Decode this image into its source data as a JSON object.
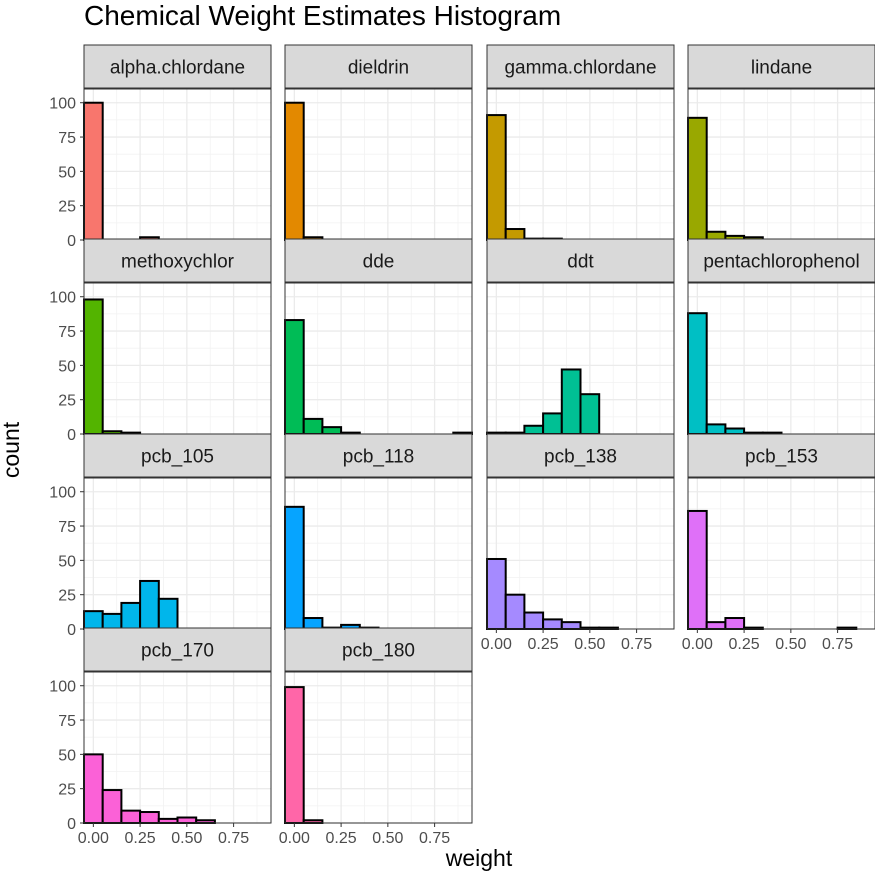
{
  "chart_data": {
    "type": "bar",
    "title": "Chemical Weight Estimates Histogram",
    "xlabel": "weight",
    "ylabel": "count",
    "xlim": [
      -0.05,
      0.95
    ],
    "ylim": [
      0,
      110
    ],
    "bin_width": 0.1,
    "bin_starts": [
      -0.05,
      0.05,
      0.15,
      0.25,
      0.35,
      0.45,
      0.55,
      0.65,
      0.75,
      0.85
    ],
    "x_ticks": [
      "0.00",
      "0.25",
      "0.50",
      "0.75"
    ],
    "x_tick_values": [
      0,
      0.25,
      0.5,
      0.75
    ],
    "y_ticks": [
      "0",
      "25",
      "50",
      "75",
      "100"
    ],
    "y_tick_values": [
      0,
      25,
      50,
      75,
      100
    ],
    "grid": true,
    "layout": "facet grid, 4 columns",
    "series": [
      {
        "name": "alpha.chlordane",
        "color": "#F8766D",
        "values": [
          100,
          0,
          0,
          2,
          0,
          0,
          0,
          0,
          0,
          0
        ]
      },
      {
        "name": "dieldrin",
        "color": "#E38900",
        "values": [
          100,
          2,
          0,
          0,
          0,
          0,
          0,
          0,
          0,
          0
        ]
      },
      {
        "name": "gamma.chlordane",
        "color": "#C49A00",
        "values": [
          91,
          8,
          1,
          1,
          0,
          0,
          0,
          0,
          0,
          0
        ]
      },
      {
        "name": "lindane",
        "color": "#99A800",
        "values": [
          89,
          6,
          3,
          2,
          0,
          0,
          0,
          0,
          0,
          0
        ]
      },
      {
        "name": "methoxychlor",
        "color": "#53B400",
        "values": [
          98,
          2,
          1,
          0,
          0,
          0,
          0,
          0,
          0,
          0
        ]
      },
      {
        "name": "dde",
        "color": "#00BC56",
        "values": [
          83,
          11,
          5,
          1,
          0,
          0,
          0,
          0,
          0,
          1
        ]
      },
      {
        "name": "ddt",
        "color": "#00C094",
        "values": [
          1,
          1,
          6,
          15,
          47,
          29,
          0,
          0,
          0,
          0
        ]
      },
      {
        "name": "pentachlorophenol",
        "color": "#00BFC4",
        "values": [
          88,
          7,
          4,
          1,
          1,
          0,
          0,
          0,
          0,
          0
        ]
      },
      {
        "name": "pcb_105",
        "color": "#00B6EB",
        "values": [
          13,
          11,
          19,
          35,
          22,
          0,
          0,
          0,
          0,
          0
        ]
      },
      {
        "name": "pcb_118",
        "color": "#06A4FF",
        "values": [
          89,
          8,
          1,
          3,
          1,
          0,
          0,
          0,
          0,
          0
        ]
      },
      {
        "name": "pcb_138",
        "color": "#A58AFF",
        "values": [
          51,
          25,
          12,
          7,
          5,
          1,
          1,
          0,
          0,
          0
        ]
      },
      {
        "name": "pcb_153",
        "color": "#DF70F8",
        "values": [
          86,
          5,
          8,
          1,
          0,
          0,
          0,
          0,
          1,
          0
        ]
      },
      {
        "name": "pcb_170",
        "color": "#FB61D7",
        "values": [
          50,
          24,
          9,
          8,
          3,
          4,
          2,
          0,
          0,
          0
        ]
      },
      {
        "name": "pcb_180",
        "color": "#FF66A8",
        "values": [
          99,
          2,
          0,
          0,
          0,
          0,
          0,
          0,
          0,
          0
        ]
      }
    ]
  }
}
